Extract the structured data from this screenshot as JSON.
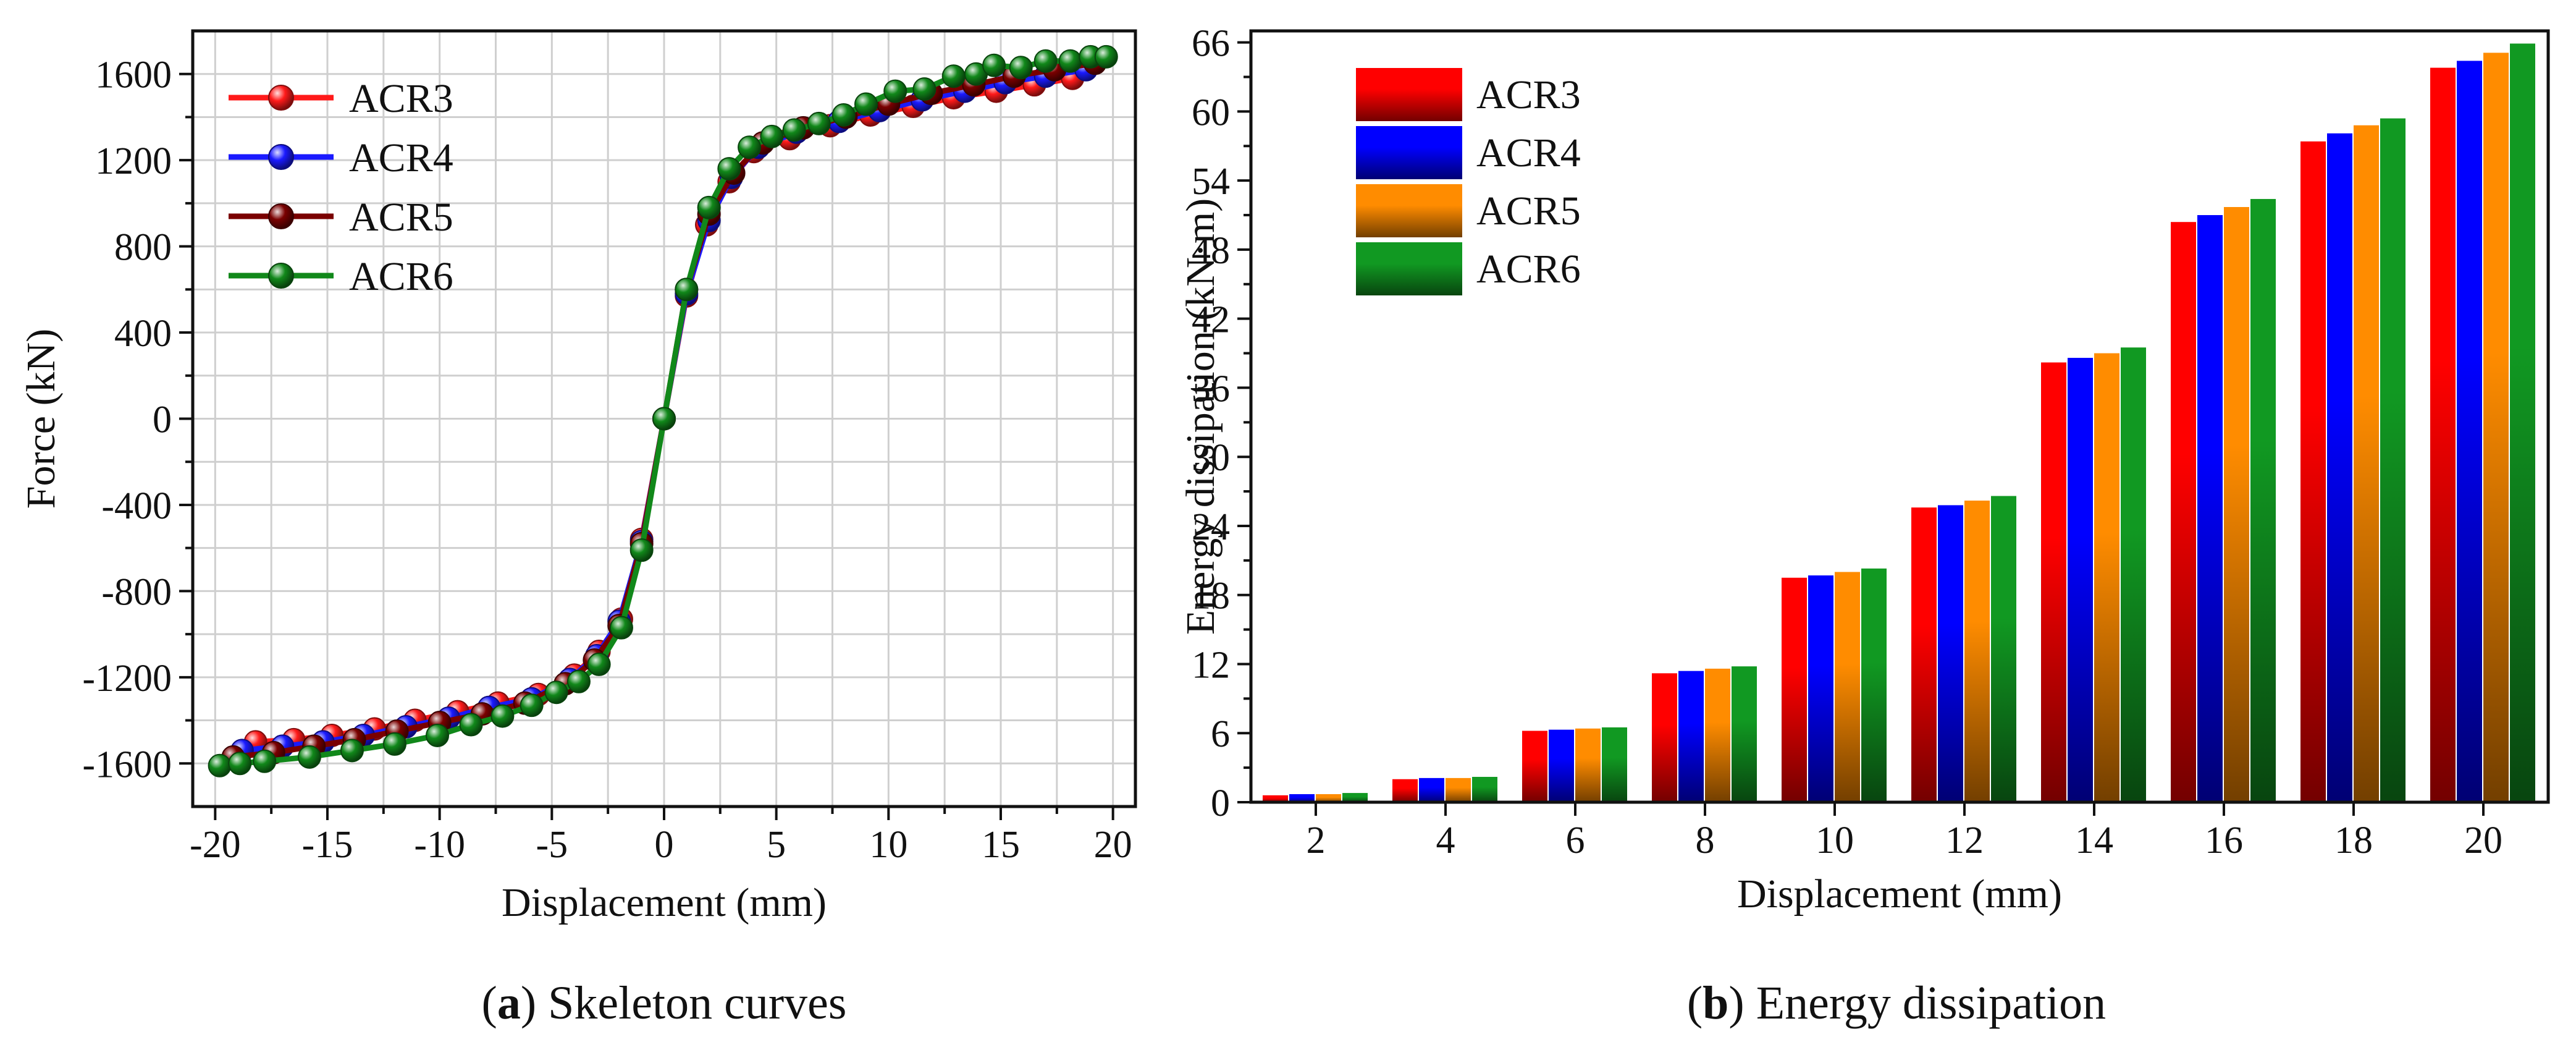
{
  "chart_data": [
    {
      "type": "line",
      "caption_letter": "a",
      "caption_text": "Skeleton curves",
      "xlabel": "Displacement (mm)",
      "ylabel": "Force (kN)",
      "xlim": [
        -21,
        21
      ],
      "ylim": [
        -1800,
        1800
      ],
      "xticks": [
        -20,
        -15,
        -10,
        -5,
        0,
        5,
        10,
        15,
        20
      ],
      "yticks": [
        -1600,
        -1200,
        -800,
        -400,
        0,
        400,
        800,
        1200,
        1600
      ],
      "grid": true,
      "legend_position": "top-left",
      "series": [
        {
          "name": "ACR3",
          "color": "#ff1a1a",
          "x": [
            -18.2,
            -16.5,
            -14.8,
            -12.9,
            -11.1,
            -9.2,
            -7.4,
            -5.6,
            -4.0,
            -2.9,
            -1.9,
            -1.0,
            0,
            1.0,
            1.9,
            2.9,
            4.0,
            5.6,
            7.4,
            9.2,
            11.1,
            12.9,
            14.8,
            16.5,
            18.2
          ],
          "y": [
            -1500,
            -1490,
            -1470,
            -1440,
            -1400,
            -1360,
            -1320,
            -1280,
            -1190,
            -1080,
            -930,
            -560,
            0,
            570,
            900,
            1100,
            1240,
            1300,
            1360,
            1410,
            1450,
            1490,
            1520,
            1550,
            1580
          ]
        },
        {
          "name": "ACR4",
          "color": "#1a1aff",
          "x": [
            -18.8,
            -17.0,
            -15.2,
            -13.4,
            -11.5,
            -9.6,
            -7.8,
            -5.9,
            -4.2,
            -3.0,
            -2.0,
            -1.0,
            0,
            1.0,
            2.0,
            3.0,
            4.2,
            5.9,
            7.8,
            9.6,
            11.5,
            13.4,
            15.2,
            17.0,
            18.8
          ],
          "y": [
            -1540,
            -1520,
            -1500,
            -1470,
            -1430,
            -1390,
            -1340,
            -1300,
            -1210,
            -1100,
            -940,
            -570,
            0,
            580,
            920,
            1120,
            1260,
            1330,
            1380,
            1430,
            1480,
            1520,
            1560,
            1590,
            1620
          ]
        },
        {
          "name": "ACR5",
          "color": "#7a0000",
          "x": [
            -19.2,
            -17.4,
            -15.6,
            -13.8,
            -11.9,
            -10.0,
            -8.1,
            -6.2,
            -4.4,
            -3.1,
            -2.0,
            -1.0,
            0,
            1.0,
            2.0,
            3.1,
            4.4,
            6.2,
            8.1,
            10.0,
            11.9,
            13.8,
            15.6,
            17.4,
            19.2
          ],
          "y": [
            -1570,
            -1550,
            -1520,
            -1490,
            -1450,
            -1410,
            -1370,
            -1320,
            -1230,
            -1120,
            -960,
            -580,
            0,
            600,
            950,
            1140,
            1280,
            1350,
            1400,
            1460,
            1510,
            1550,
            1590,
            1620,
            1650
          ]
        },
        {
          "name": "ACR6",
          "color": "#11881a",
          "x": [
            -19.8,
            -18.9,
            -17.8,
            -15.8,
            -13.9,
            -12.0,
            -10.1,
            -8.6,
            -7.2,
            -5.9,
            -4.8,
            -3.8,
            -2.9,
            -1.9,
            -1.0,
            0,
            1.0,
            2.0,
            2.9,
            3.8,
            4.8,
            5.8,
            6.9,
            8.0,
            9.0,
            10.3,
            11.6,
            12.9,
            13.9,
            14.7,
            15.9,
            17.0,
            18.1,
            19.0,
            19.7
          ],
          "y": [
            -1610,
            -1600,
            -1590,
            -1570,
            -1540,
            -1510,
            -1470,
            -1420,
            -1380,
            -1330,
            -1270,
            -1220,
            -1140,
            -970,
            -610,
            0,
            600,
            980,
            1160,
            1260,
            1310,
            1340,
            1370,
            1410,
            1460,
            1520,
            1530,
            1590,
            1600,
            1640,
            1630,
            1660,
            1660,
            1680,
            1680
          ]
        }
      ]
    },
    {
      "type": "bar",
      "caption_letter": "b",
      "caption_text": "Energy dissipation",
      "xlabel": "Displacement (mm)",
      "ylabel": "Energy dissipation (kN·m)",
      "ylim": [
        0,
        67
      ],
      "yticks": [
        0,
        6,
        12,
        18,
        24,
        30,
        36,
        42,
        48,
        54,
        60,
        66
      ],
      "categories": [
        "2",
        "4",
        "6",
        "8",
        "10",
        "12",
        "14",
        "16",
        "18",
        "20"
      ],
      "grid": false,
      "legend_position": "top-left",
      "series": [
        {
          "name": "ACR3",
          "color": "#ff0000",
          "values": [
            0.6,
            2.0,
            6.2,
            11.2,
            19.5,
            25.6,
            38.2,
            50.4,
            57.4,
            63.8
          ]
        },
        {
          "name": "ACR4",
          "color": "#0000ff",
          "values": [
            0.7,
            2.1,
            6.3,
            11.4,
            19.7,
            25.8,
            38.6,
            51.0,
            58.1,
            64.4
          ]
        },
        {
          "name": "ACR5",
          "color": "#ff8c00",
          "values": [
            0.7,
            2.1,
            6.4,
            11.6,
            20.0,
            26.2,
            39.0,
            51.7,
            58.8,
            65.1
          ]
        },
        {
          "name": "ACR6",
          "color": "#119922",
          "values": [
            0.8,
            2.2,
            6.5,
            11.8,
            20.3,
            26.6,
            39.5,
            52.4,
            59.4,
            65.9
          ]
        }
      ]
    }
  ]
}
